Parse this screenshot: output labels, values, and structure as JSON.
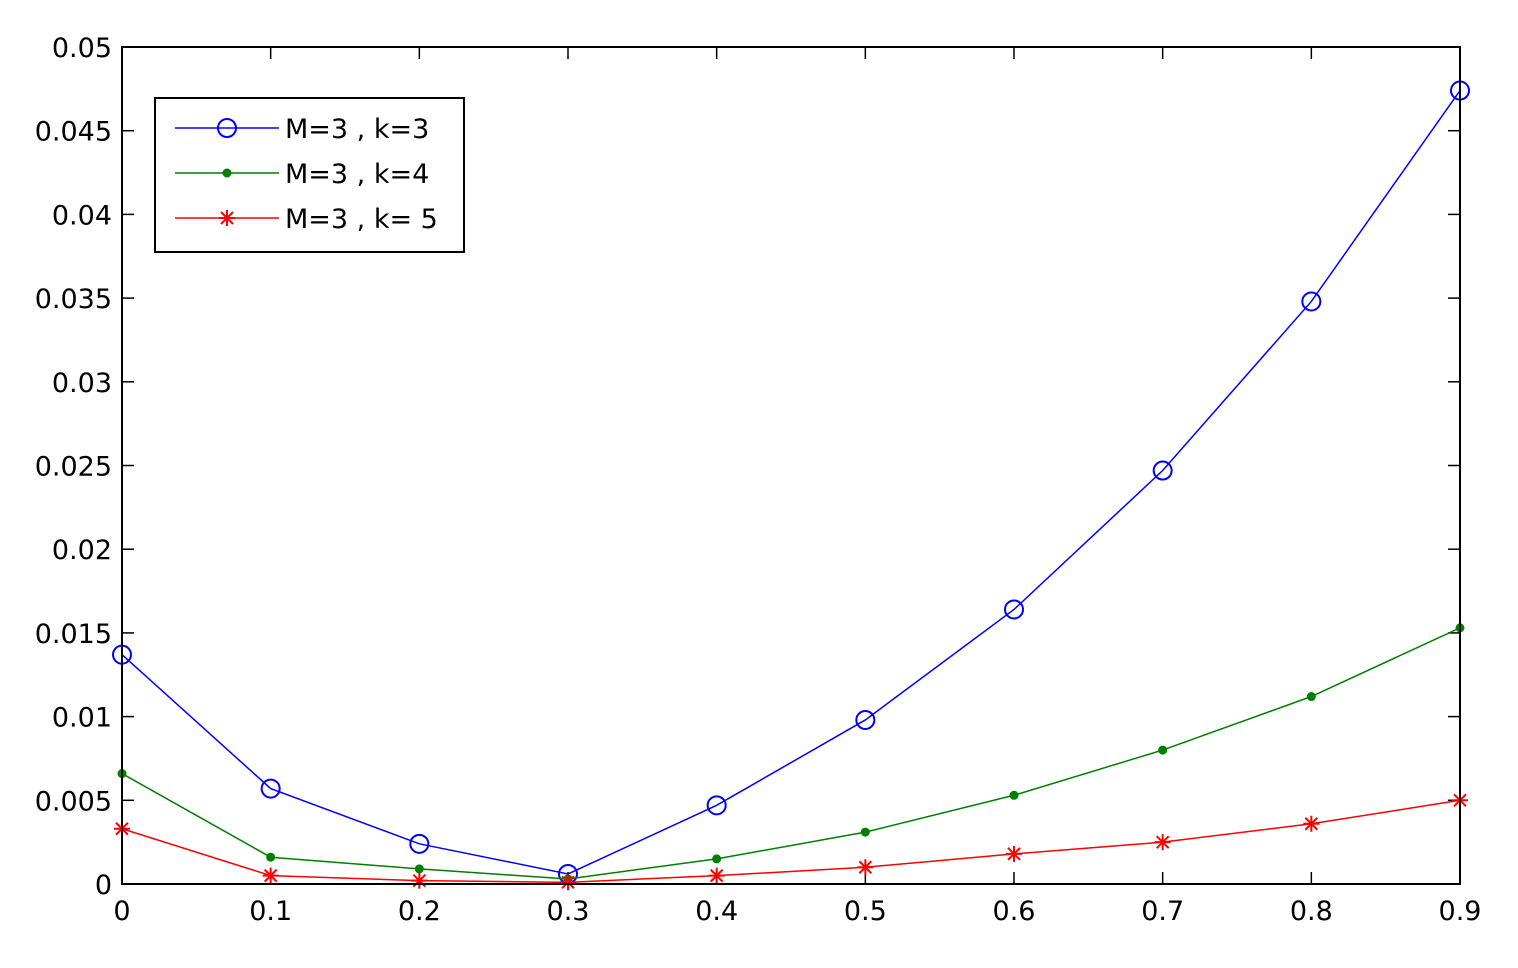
{
  "chart_data": {
    "type": "line",
    "title": "",
    "xlabel": "",
    "ylabel": "",
    "x": [
      0,
      0.1,
      0.2,
      0.3,
      0.4,
      0.5,
      0.6,
      0.7,
      0.8,
      0.9
    ],
    "xlim": [
      0,
      0.9
    ],
    "ylim": [
      0,
      0.05
    ],
    "x_ticks": [
      "0",
      "0.1",
      "0.2",
      "0.3",
      "0.4",
      "0.5",
      "0.6",
      "0.7",
      "0.8",
      "0.9"
    ],
    "y_ticks": [
      "0",
      "0.005",
      "0.01",
      "0.015",
      "0.02",
      "0.025",
      "0.03",
      "0.035",
      "0.04",
      "0.045",
      "0.05"
    ],
    "grid": false,
    "legend_position": "top-left",
    "series": [
      {
        "name": "M=3 , k=3",
        "color": "#0000ff",
        "marker": "circle",
        "values": [
          0.0137,
          0.0057,
          0.0024,
          0.0006,
          0.0047,
          0.0098,
          0.0164,
          0.0247,
          0.0348,
          0.0474
        ]
      },
      {
        "name": "M=3 , k=4",
        "color": "#007f00",
        "marker": "dot",
        "values": [
          0.0066,
          0.0016,
          0.0009,
          0.0003,
          0.0015,
          0.0031,
          0.0053,
          0.008,
          0.0112,
          0.0153
        ]
      },
      {
        "name": "M=3 , k= 5",
        "color": "#ff0000",
        "marker": "star",
        "values": [
          0.0033,
          0.0005,
          0.0002,
          0.0001,
          0.0005,
          0.001,
          0.0018,
          0.0025,
          0.0036,
          0.005
        ]
      }
    ]
  }
}
